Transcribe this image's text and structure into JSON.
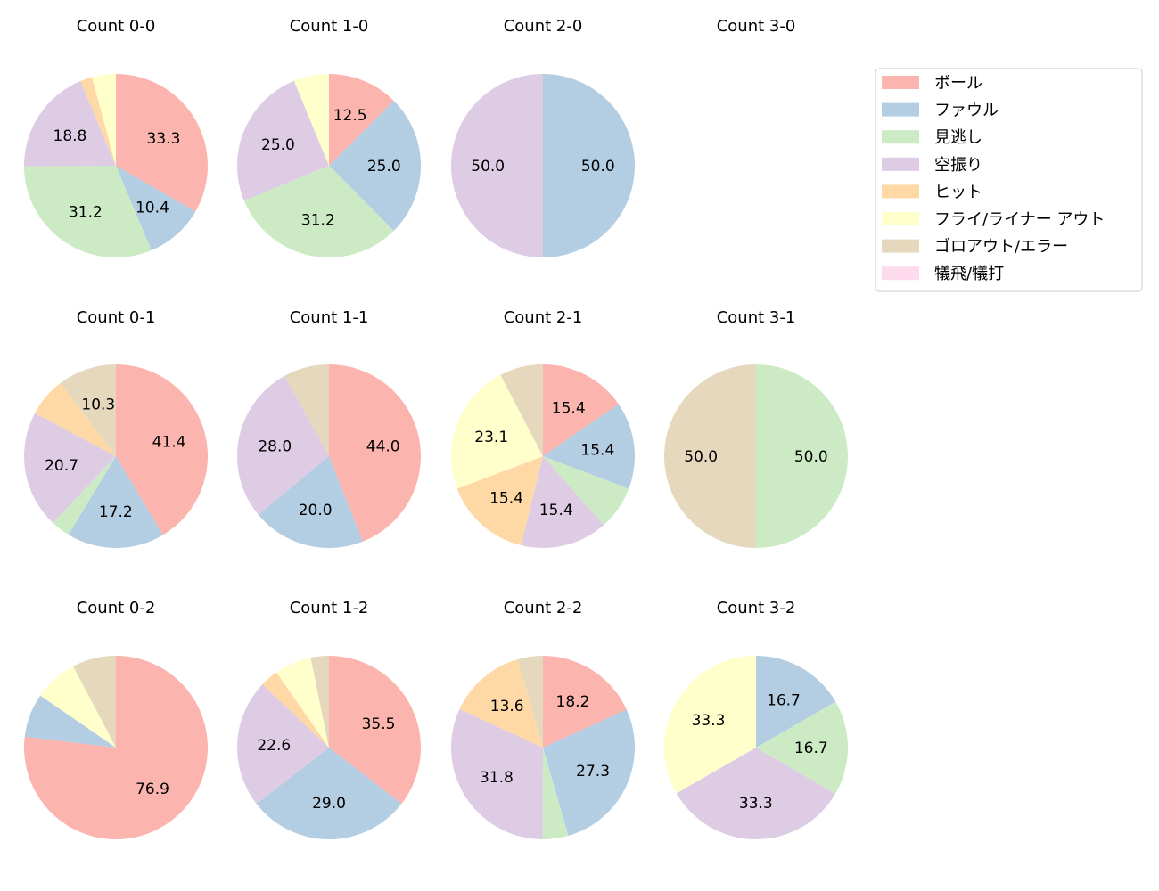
{
  "chart_data": {
    "type": "pie",
    "categories": [
      "ボール",
      "ファウル",
      "見逃し",
      "空振り",
      "ヒット",
      "フライ/ライナー アウト",
      "ゴロアウト/エラー",
      "犠飛/犠打"
    ],
    "colors": [
      "#fbb4ae",
      "#b3cde3",
      "#ccebc5",
      "#decbe4",
      "#fed9a6",
      "#ffffcc",
      "#e5d8bd",
      "#fddaec"
    ],
    "legend_position": "right",
    "start_angle": 90,
    "direction": "clockwise",
    "label_threshold": 10,
    "pies": [
      {
        "title": "Count 0-0",
        "values": [
          33.3,
          10.4,
          31.2,
          18.8,
          2.1,
          4.2,
          0,
          0
        ]
      },
      {
        "title": "Count 1-0",
        "values": [
          12.5,
          25.0,
          31.2,
          25.0,
          0,
          6.2,
          0,
          0
        ]
      },
      {
        "title": "Count 2-0",
        "values": [
          0,
          50.0,
          0,
          50.0,
          0,
          0,
          0,
          0
        ]
      },
      {
        "title": "Count 3-0",
        "values": [
          0,
          0,
          0,
          0,
          0,
          0,
          0,
          0
        ]
      },
      {
        "title": "Count 0-1",
        "values": [
          41.4,
          17.2,
          3.4,
          20.7,
          6.9,
          0,
          10.3,
          0
        ]
      },
      {
        "title": "Count 1-1",
        "values": [
          44.0,
          20.0,
          0,
          28.0,
          0,
          0,
          8.0,
          0
        ]
      },
      {
        "title": "Count 2-1",
        "values": [
          15.4,
          15.4,
          7.7,
          15.4,
          15.4,
          23.1,
          7.7,
          0
        ]
      },
      {
        "title": "Count 3-1",
        "values": [
          0,
          0,
          50.0,
          0,
          0,
          0,
          50.0,
          0
        ]
      },
      {
        "title": "Count 0-2",
        "values": [
          76.9,
          7.7,
          0,
          0,
          0,
          7.7,
          7.7,
          0
        ]
      },
      {
        "title": "Count 1-2",
        "values": [
          35.5,
          29.0,
          0,
          22.6,
          3.2,
          6.5,
          3.2,
          0
        ]
      },
      {
        "title": "Count 2-2",
        "values": [
          18.2,
          27.3,
          4.5,
          31.8,
          13.6,
          0,
          4.5,
          0
        ]
      },
      {
        "title": "Count 3-2",
        "values": [
          0,
          16.7,
          16.7,
          33.3,
          0,
          33.3,
          0,
          0
        ]
      }
    ]
  }
}
